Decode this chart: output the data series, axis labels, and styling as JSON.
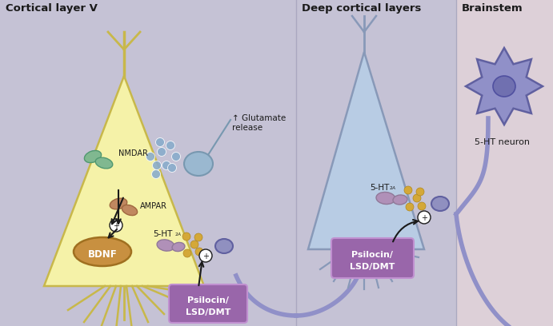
{
  "bg_left": "#c5c2d5",
  "bg_middle": "#c5c2d5",
  "bg_right": "#ddd0d8",
  "divider_color": "#aaa8c0",
  "title_left": "Cortical layer V",
  "title_mid": "Deep cortical layers",
  "title_right": "Brainstem",
  "neuron_left_fc": "#f5f2a8",
  "neuron_left_ec": "#c8b84a",
  "neuron_mid_fc": "#b8cce4",
  "neuron_mid_ec": "#8899b8",
  "neuron_right_fc": "#9090c8",
  "neuron_right_ec": "#6060a0",
  "nucleus_fc": "#7070b0",
  "nucleus_ec": "#5050a0",
  "bdnf_fc": "#c89040",
  "bdnf_ec": "#a07020",
  "receptor_fc": "#b090b8",
  "receptor_ec": "#907898",
  "ampar_fc": "#c08860",
  "ampar_ec": "#a06840",
  "nmdar_fc": "#80b890",
  "nmdar_ec": "#509870",
  "glut_dot_fc": "#8aaccc",
  "glut_dot_ec": "#6888aa",
  "glut_bulb_fc": "#9ab8d0",
  "glut_bulb_ec": "#7898b0",
  "serotonin_fc": "#d4a838",
  "serotonin_ec": "#b08820",
  "axon_terminal_fc": "#9090c0",
  "axon_terminal_ec": "#6060a0",
  "axon_color": "#9090c8",
  "box_fc": "#9966aa",
  "box_ec": "#ffffff",
  "box_text": "#ffffff",
  "label_color": "#1a1a1a",
  "arrow_color": "#1a1a1a",
  "plus_bg": "#ffffff",
  "plus_fg": "#1a1a1a"
}
